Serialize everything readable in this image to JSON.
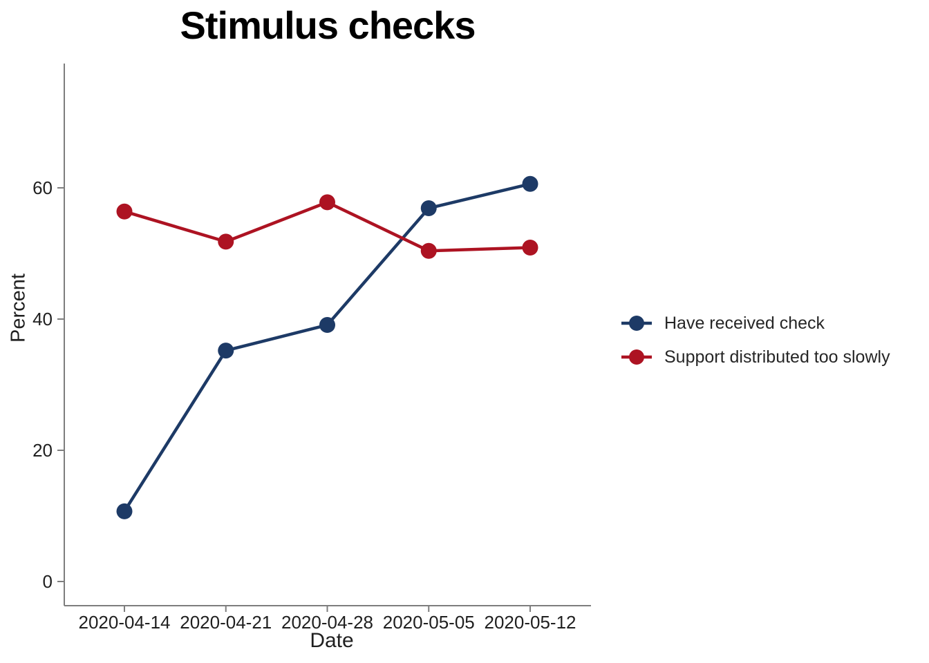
{
  "chart_data": {
    "type": "line",
    "title": "Stimulus checks",
    "xlabel": "Date",
    "ylabel": "Percent",
    "categories": [
      "2020-04-14",
      "2020-04-21",
      "2020-04-28",
      "2020-05-05",
      "2020-05-12"
    ],
    "y_ticks": [
      0,
      20,
      40,
      60
    ],
    "ylim": [
      -3.7,
      78.9
    ],
    "grid": false,
    "legend_position": "right",
    "marker": "circle",
    "axis_color": "#7d7d7d",
    "series": [
      {
        "name": "Have received check",
        "color": "#1d3a66",
        "values": [
          10.7,
          35.2,
          39.1,
          56.9,
          60.6
        ]
      },
      {
        "name": "Support distributed too slowly",
        "color": "#ad1322",
        "values": [
          56.4,
          51.8,
          57.8,
          50.4,
          50.9
        ]
      }
    ]
  }
}
